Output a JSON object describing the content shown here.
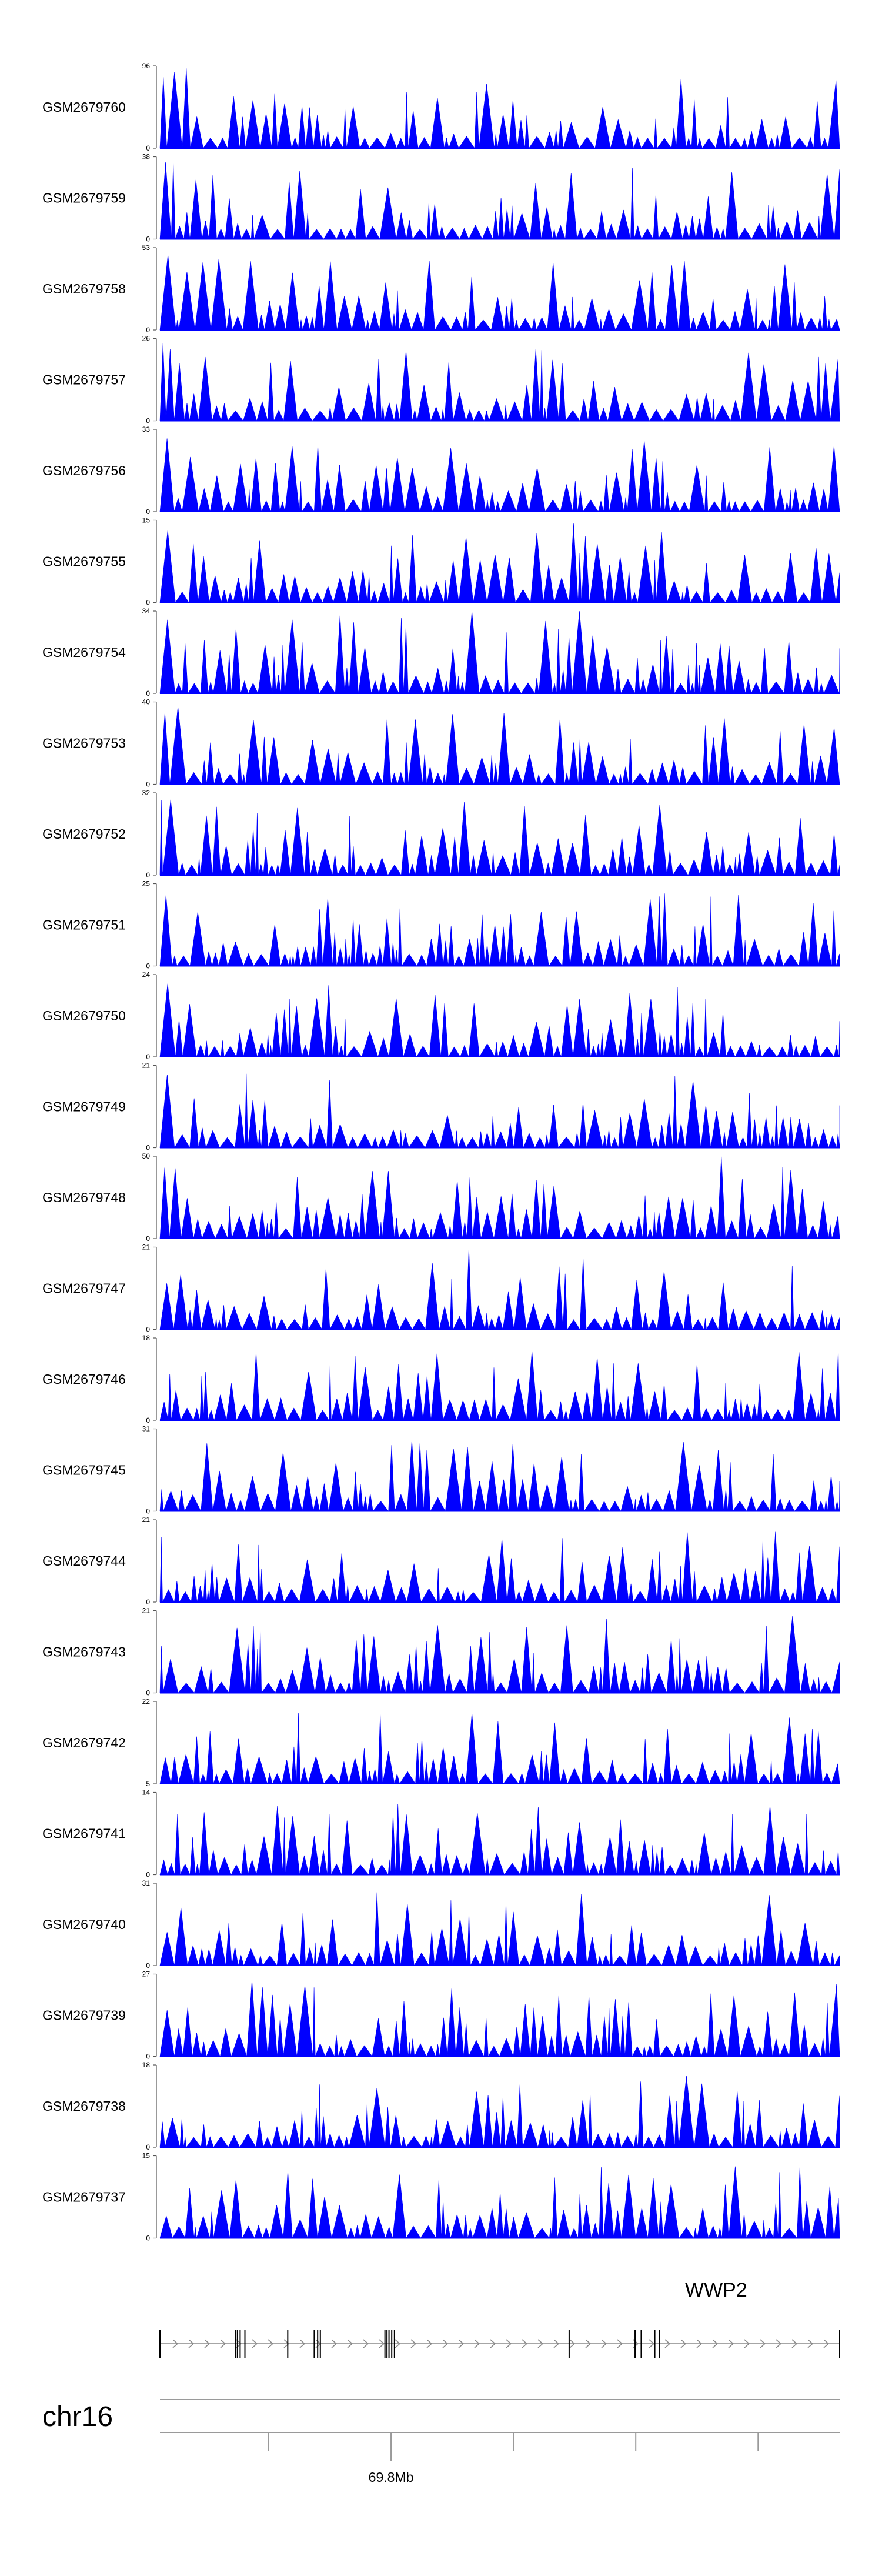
{
  "chart_data": {
    "type": "area",
    "title": "",
    "track_color": "#0000ff",
    "tracks": [
      {
        "name": "GSM2679760",
        "ymax": 96,
        "ymin": 0,
        "seed": 1
      },
      {
        "name": "GSM2679759",
        "ymax": 38,
        "ymin": 0,
        "seed": 2
      },
      {
        "name": "GSM2679758",
        "ymax": 53,
        "ymin": 0,
        "seed": 3
      },
      {
        "name": "GSM2679757",
        "ymax": 26,
        "ymin": 0,
        "seed": 4
      },
      {
        "name": "GSM2679756",
        "ymax": 33,
        "ymin": 0,
        "seed": 5
      },
      {
        "name": "GSM2679755",
        "ymax": 15,
        "ymin": 0,
        "seed": 6
      },
      {
        "name": "GSM2679754",
        "ymax": 34,
        "ymin": 0,
        "seed": 7
      },
      {
        "name": "GSM2679753",
        "ymax": 40,
        "ymin": 0,
        "seed": 8
      },
      {
        "name": "GSM2679752",
        "ymax": 32,
        "ymin": 0,
        "seed": 9
      },
      {
        "name": "GSM2679751",
        "ymax": 25,
        "ymin": 0,
        "seed": 10
      },
      {
        "name": "GSM2679750",
        "ymax": 24,
        "ymin": 0,
        "seed": 11
      },
      {
        "name": "GSM2679749",
        "ymax": 21,
        "ymin": 0,
        "seed": 12
      },
      {
        "name": "GSM2679748",
        "ymax": 50,
        "ymin": 0,
        "seed": 13
      },
      {
        "name": "GSM2679747",
        "ymax": 21,
        "ymin": 0,
        "seed": 14
      },
      {
        "name": "GSM2679746",
        "ymax": 18,
        "ymin": 0,
        "seed": 15
      },
      {
        "name": "GSM2679745",
        "ymax": 31,
        "ymin": 0,
        "seed": 16
      },
      {
        "name": "GSM2679744",
        "ymax": 21,
        "ymin": 0,
        "seed": 17
      },
      {
        "name": "GSM2679743",
        "ymax": 21,
        "ymin": 0,
        "seed": 18
      },
      {
        "name": "GSM2679742",
        "ymax": 22,
        "ymin": 5,
        "seed": 19
      },
      {
        "name": "GSM2679741",
        "ymax": 14,
        "ymin": 0,
        "seed": 20
      },
      {
        "name": "GSM2679740",
        "ymax": 31,
        "ymin": 0,
        "seed": 21
      },
      {
        "name": "GSM2679739",
        "ymax": 27,
        "ymin": 0,
        "seed": 22
      },
      {
        "name": "GSM2679738",
        "ymax": 18,
        "ymin": 0,
        "seed": 23
      },
      {
        "name": "GSM2679737",
        "ymax": 15,
        "ymin": 0,
        "seed": 24
      }
    ],
    "gene": {
      "name": "WWP2",
      "exon_positions": [
        0.0,
        0.111,
        0.114,
        0.118,
        0.125,
        0.188,
        0.227,
        0.232,
        0.236,
        0.331,
        0.334,
        0.337,
        0.341,
        0.345,
        0.602,
        0.699,
        0.708,
        0.728,
        0.735,
        1.0
      ],
      "strand": "+"
    },
    "genome_axis": {
      "chromosome": "chr16",
      "tick_fractions": [
        0.16,
        0.34,
        0.52,
        0.7,
        0.88
      ],
      "labeled_tick": {
        "label": "69.8Mb",
        "fraction": 0.34
      }
    }
  }
}
